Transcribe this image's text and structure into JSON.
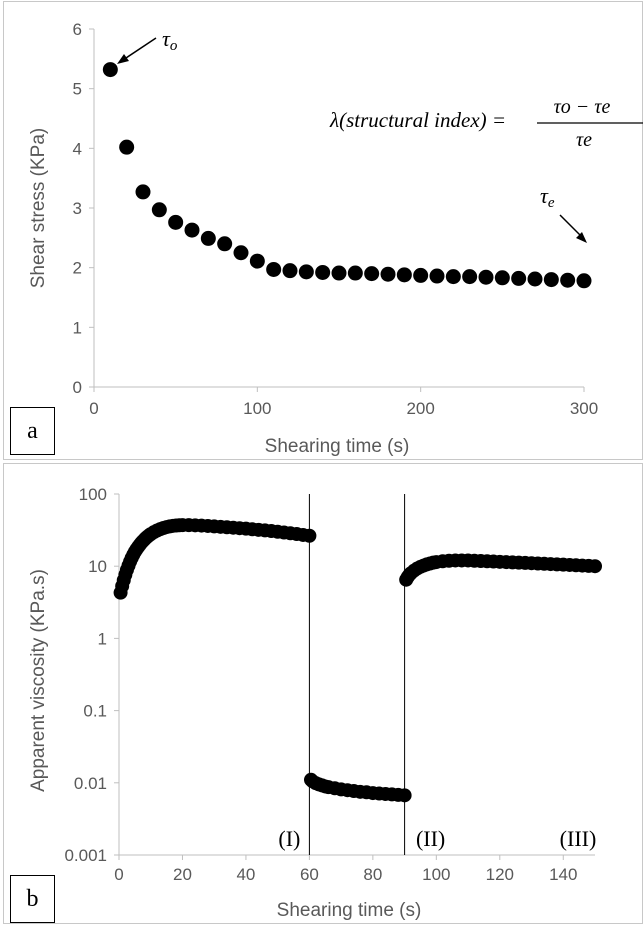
{
  "chart_data": [
    {
      "type": "scatter",
      "panel_label": "a",
      "xlabel": "Shearing time (s)",
      "ylabel": "Shear stress (KPa)",
      "xlim": [
        0,
        300
      ],
      "ylim": [
        0,
        6
      ],
      "x_ticks": [
        "0",
        "100",
        "200",
        "300"
      ],
      "y_ticks": [
        "0",
        "1",
        "2",
        "3",
        "4",
        "5",
        "6"
      ],
      "grid": false,
      "annotations": {
        "tau_o": "τo",
        "tau_e": "τe",
        "formula_lhs": "λ(structural index) =",
        "formula_num": "τo − τe",
        "formula_den": "τe"
      },
      "series": [
        {
          "x": [
            10,
            20,
            30,
            40,
            50,
            60,
            70,
            80,
            90,
            100,
            110,
            120,
            130,
            140,
            150,
            160,
            170,
            180,
            190,
            200,
            210,
            220,
            230,
            240,
            250,
            260,
            270,
            280,
            290,
            300
          ],
          "y": [
            5.32,
            4.02,
            3.27,
            2.97,
            2.76,
            2.63,
            2.49,
            2.4,
            2.25,
            2.11,
            1.97,
            1.95,
            1.93,
            1.92,
            1.91,
            1.91,
            1.9,
            1.89,
            1.88,
            1.87,
            1.86,
            1.85,
            1.85,
            1.84,
            1.83,
            1.82,
            1.81,
            1.8,
            1.79,
            1.78
          ]
        }
      ]
    },
    {
      "type": "scatter",
      "panel_label": "b",
      "xlabel": "Shearing time (s)",
      "ylabel": "Apparent viscosity (KPa.s)",
      "y_scale": "log",
      "xlim": [
        0,
        150
      ],
      "ylim": [
        0.001,
        100
      ],
      "x_ticks": [
        "0",
        "20",
        "40",
        "60",
        "80",
        "100",
        "120",
        "140"
      ],
      "y_ticks": [
        "100",
        "10",
        "1",
        "0.1",
        "0.01",
        "0.001"
      ],
      "grid": false,
      "region_lines_x": [
        60,
        90
      ],
      "region_labels": [
        "(I)",
        "(II)",
        "(III)"
      ],
      "series": [
        {
          "x": [
            0.5,
            1,
            1.5,
            2,
            2.5,
            3,
            3.5,
            4,
            4.5,
            5,
            5.5,
            6,
            6.5,
            7,
            7.5,
            8,
            8.5,
            9,
            9.5,
            10,
            11,
            12,
            13,
            14,
            15,
            16,
            17,
            18,
            19,
            20,
            22,
            24,
            26,
            28,
            30,
            32,
            34,
            36,
            38,
            40,
            42,
            44,
            46,
            48,
            50,
            52,
            54,
            56,
            58,
            60
          ],
          "y": [
            4.3,
            5.3,
            6.4,
            7.6,
            8.9,
            10.2,
            11.6,
            13.0,
            14.4,
            15.8,
            17.1,
            18.4,
            19.7,
            21.0,
            22.2,
            23.4,
            24.6,
            25.7,
            26.8,
            27.8,
            29.6,
            31.2,
            32.6,
            33.8,
            34.8,
            35.6,
            36.2,
            36.6,
            36.9,
            37.0,
            37.0,
            36.8,
            36.5,
            36.1,
            35.6,
            35.1,
            34.6,
            34.1,
            33.6,
            33.1,
            32.5,
            31.9,
            31.3,
            30.7,
            30.0,
            29.3,
            28.6,
            27.9,
            27.1,
            26.4
          ]
        },
        {
          "x": [
            60.5,
            61,
            62,
            63,
            64,
            65,
            66,
            68,
            70,
            72,
            74,
            76,
            78,
            80,
            82,
            84,
            86,
            88,
            90
          ],
          "y": [
            0.011,
            0.0105,
            0.0099,
            0.0095,
            0.0092,
            0.0089,
            0.0087,
            0.0084,
            0.0081,
            0.0079,
            0.0077,
            0.0075,
            0.0074,
            0.0072,
            0.0071,
            0.007,
            0.0069,
            0.0068,
            0.0067
          ]
        },
        {
          "x": [
            90.5,
            91,
            91.5,
            92,
            93,
            94,
            95,
            96,
            97,
            98,
            99,
            100,
            102,
            104,
            106,
            108,
            110,
            112,
            114,
            116,
            118,
            120,
            122,
            124,
            126,
            128,
            130,
            132,
            134,
            136,
            138,
            140,
            142,
            144,
            146,
            148,
            150
          ],
          "y": [
            6.5,
            7.1,
            7.6,
            8.0,
            8.7,
            9.3,
            9.8,
            10.2,
            10.6,
            10.9,
            11.2,
            11.4,
            11.7,
            11.9,
            12.0,
            12.0,
            12.0,
            11.9,
            11.8,
            11.7,
            11.6,
            11.5,
            11.4,
            11.3,
            11.2,
            11.1,
            11.0,
            10.9,
            10.8,
            10.7,
            10.6,
            10.5,
            10.4,
            10.3,
            10.2,
            10.1,
            10.0
          ]
        }
      ]
    }
  ],
  "colors": {
    "marker": "#000000",
    "axis": "#bfbfbf",
    "text": "#595959"
  }
}
